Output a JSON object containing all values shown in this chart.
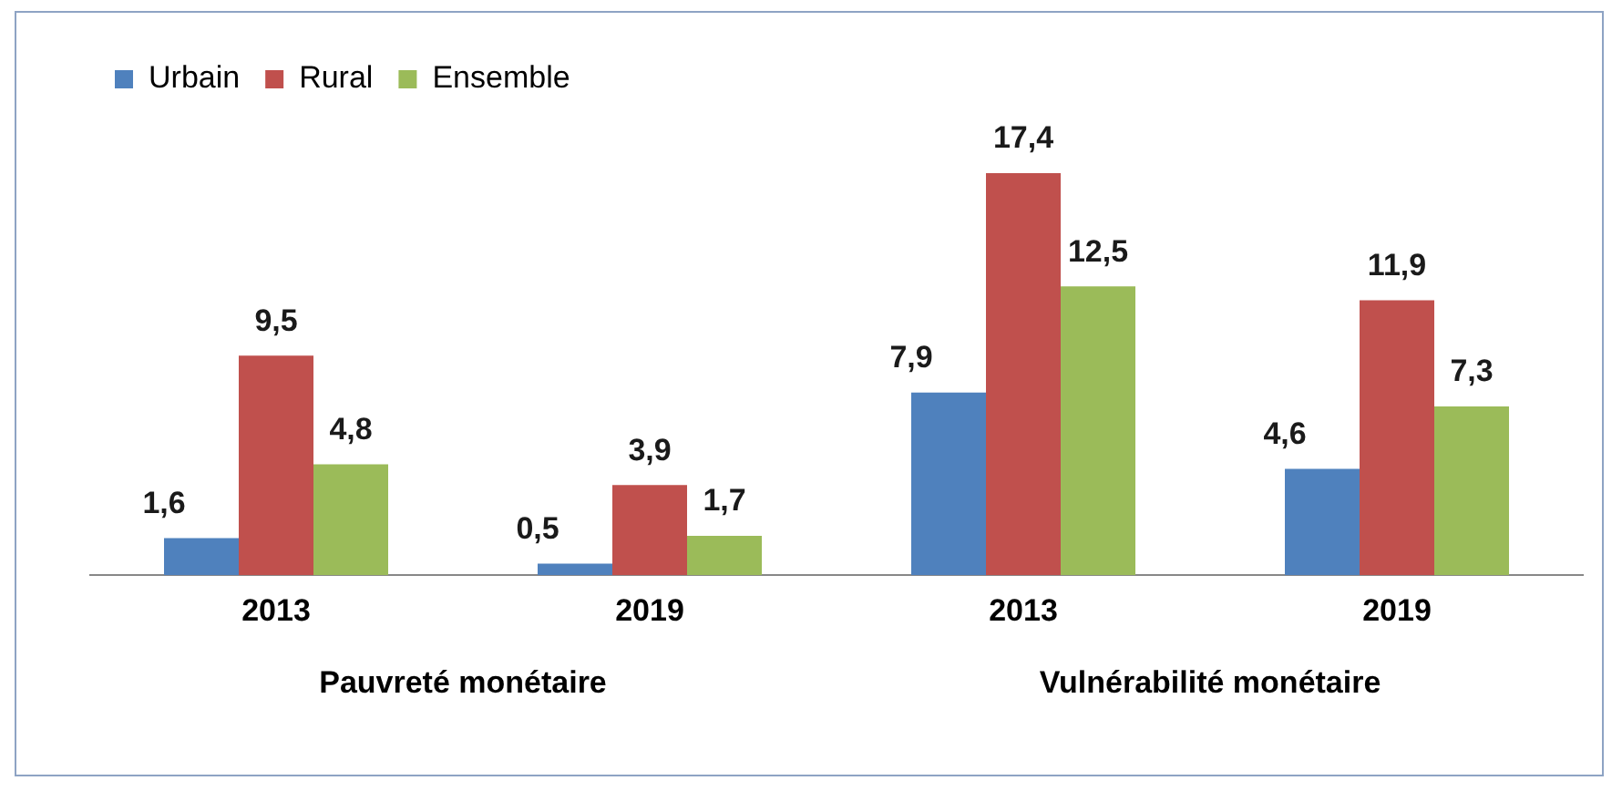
{
  "chart_data": {
    "type": "bar",
    "categories": [
      "2013",
      "2019",
      "2013",
      "2019"
    ],
    "series": [
      {
        "name": "Urbain",
        "color": "#4f81bd",
        "values": [
          1.6,
          0.5,
          7.9,
          4.6
        ],
        "value_labels": [
          "1,6",
          "0,5",
          "7,9",
          "4,6"
        ]
      },
      {
        "name": "Rural",
        "color": "#c0504d",
        "values": [
          9.5,
          3.9,
          17.4,
          11.9
        ],
        "value_labels": [
          "9,5",
          "3,9",
          "17,4",
          "11,9"
        ]
      },
      {
        "name": "Ensemble",
        "color": "#9bbb59",
        "values": [
          4.8,
          1.7,
          12.5,
          7.3
        ],
        "value_labels": [
          "4,8",
          "1,7",
          "12,5",
          "7,3"
        ]
      }
    ],
    "legend": "top left",
    "grid": false,
    "annotations": [
      "Pauvreté monétaire",
      "Vulnérabilité monétaire"
    ]
  }
}
